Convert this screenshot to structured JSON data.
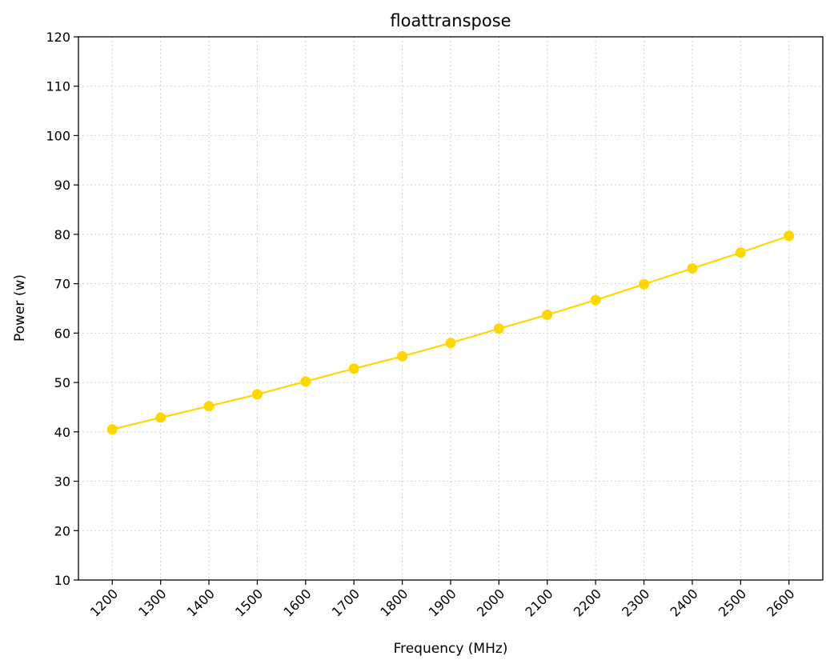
{
  "chart_data": {
    "type": "line",
    "title": "floattranspose",
    "xlabel": "Frequency (MHz)",
    "ylabel": "Power (w)",
    "x": [
      1200,
      1300,
      1400,
      1500,
      1600,
      1700,
      1800,
      1900,
      2000,
      2100,
      2200,
      2300,
      2400,
      2500,
      2600
    ],
    "x_tick_labels": [
      "1200",
      "1300",
      "1400",
      "1500",
      "1600",
      "1700",
      "1800",
      "1900",
      "2000",
      "2100",
      "2200",
      "2300",
      "2400",
      "2500",
      "2600"
    ],
    "series": [
      {
        "color": "#FFD700",
        "marker": "circle",
        "values": [
          40.5,
          42.9,
          45.2,
          47.6,
          50.2,
          52.8,
          55.3,
          58.0,
          60.9,
          63.7,
          66.7,
          69.9,
          73.1,
          76.3,
          79.7
        ]
      }
    ],
    "ylim": [
      10,
      120
    ],
    "y_ticks": [
      10,
      20,
      30,
      40,
      50,
      60,
      70,
      80,
      90,
      100,
      110,
      120
    ],
    "x_tick_rotation": "45deg",
    "grid": true,
    "grid_style": "dotted"
  }
}
